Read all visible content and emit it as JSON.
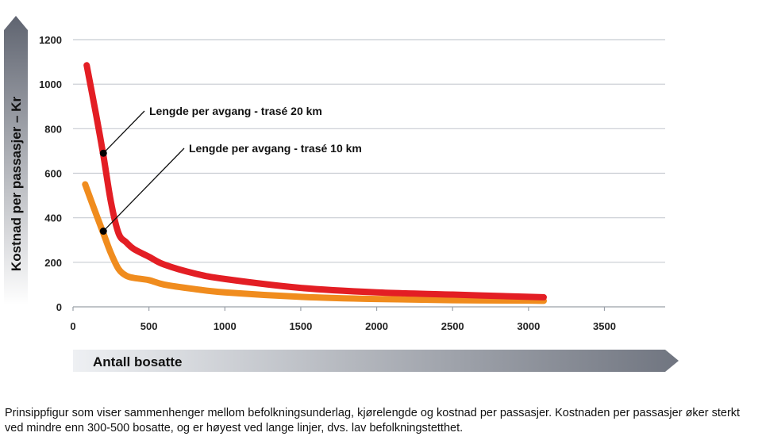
{
  "chart_data": {
    "type": "line",
    "xlabel": "Antall bosatte",
    "ylabel": "Kostnad per passasjer – Kr",
    "xlim": [
      0,
      3900
    ],
    "ylim": [
      0,
      1200
    ],
    "xticks": [
      0,
      500,
      1000,
      1500,
      2000,
      2500,
      3000,
      3500
    ],
    "yticks": [
      0,
      200,
      400,
      600,
      800,
      1000,
      1200
    ],
    "grid": "horizontal",
    "series": [
      {
        "color": "#e31e24",
        "x": [
          90,
          150,
          200,
          250,
          300,
          350,
          400,
          500,
          600,
          800,
          1000,
          1500,
          2000,
          2500,
          3000,
          3100
        ],
        "y": [
          1085,
          870,
          680,
          470,
          330,
          290,
          260,
          225,
          190,
          150,
          125,
          85,
          65,
          55,
          45,
          43
        ]
      },
      {
        "color": "#f08c1e",
        "x": [
          80,
          150,
          200,
          250,
          300,
          350,
          400,
          500,
          600,
          800,
          1000,
          1500,
          2000,
          2500,
          3000,
          3100
        ],
        "y": [
          550,
          420,
          330,
          240,
          170,
          140,
          130,
          120,
          100,
          80,
          65,
          45,
          35,
          30,
          28,
          27
        ]
      }
    ],
    "annotations": [
      {
        "text": "Lengde per avgang - trasé 20 km",
        "series": 0,
        "point": [
          200,
          690
        ]
      },
      {
        "text": "Lengde per avgang - trasé  10 km",
        "series": 1,
        "point": [
          200,
          340
        ]
      }
    ]
  },
  "caption": "Prinsippfigur som viser sammenhenger mellom befolkningsunderlag, kjørelengde og kostnad per passasjer. Kostnaden per passasjer øker sterkt ved mindre enn 300-500 bosatte, og er høyest ved lange linjer, dvs. lav befolkningstetthet."
}
